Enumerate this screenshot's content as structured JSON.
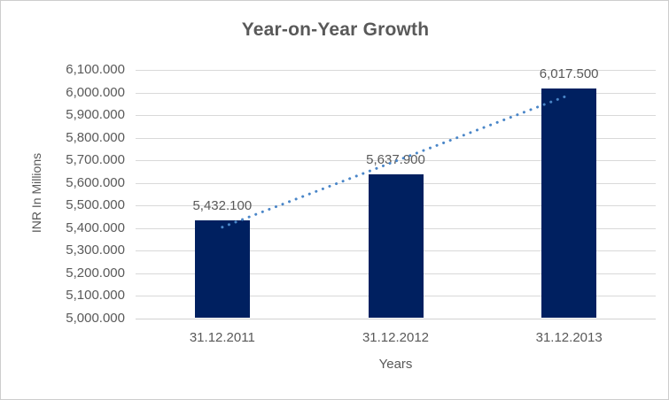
{
  "chart_data": {
    "type": "bar",
    "title": "Year-on-Year Growth",
    "categories": [
      "31.12.2011",
      "31.12.2012",
      "31.12.2013"
    ],
    "values": [
      5432.1,
      5637.9,
      6017.5
    ],
    "data_labels": [
      "5,432.100",
      "5,637.900",
      "6,017.500"
    ],
    "xlabel": "Years",
    "ylabel": "INR In Millions",
    "ylim": [
      5000,
      6100
    ],
    "ytick_step": 100,
    "ytick_labels": [
      "6,100.000",
      "6,000.000",
      "5,900.000",
      "5,800.000",
      "5,700.000",
      "5,600.000",
      "5,500.000",
      "5,400.000",
      "5,300.000",
      "5,200.000",
      "5,100.000",
      "5,000.000"
    ],
    "grid": true,
    "legend_position": "none",
    "trendline": {
      "type": "linear",
      "style": "dotted"
    },
    "colors": {
      "bar": "#002060",
      "trend": "#4a86c8",
      "grid": "#d9d9d9",
      "axis_line": "#d2d2d2",
      "text": "#595959",
      "background": "#ffffff",
      "border": "#cdcdcd"
    }
  }
}
